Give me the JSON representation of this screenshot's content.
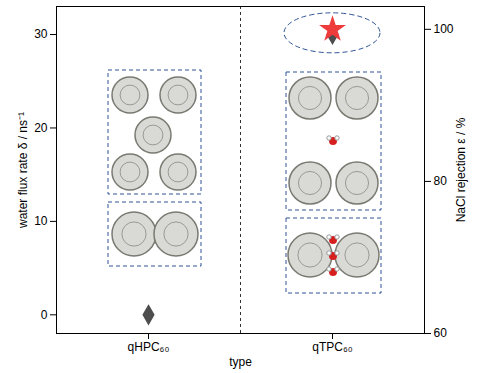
{
  "chart_data": {
    "type": "scatter",
    "categories": [
      "qHPC₆₀",
      "qTPC₆₀"
    ],
    "xlabel": "type",
    "ylabel": "water flux rate δ / ns⁻¹",
    "y2label": "NaCl rejection ε / %",
    "ylim": [
      -2,
      33
    ],
    "yticks": [
      0,
      10,
      20,
      30
    ],
    "y2lim": [
      60,
      103
    ],
    "y2ticks": [
      60,
      80,
      100
    ],
    "series": [
      {
        "color": "#4d4d4d",
        "marker": "diamond",
        "values": [
          0,
          30
        ]
      },
      {
        "color": "#ee3b3b",
        "marker": "star",
        "axis": "y2",
        "values": [
          null,
          100
        ]
      }
    ]
  }
}
